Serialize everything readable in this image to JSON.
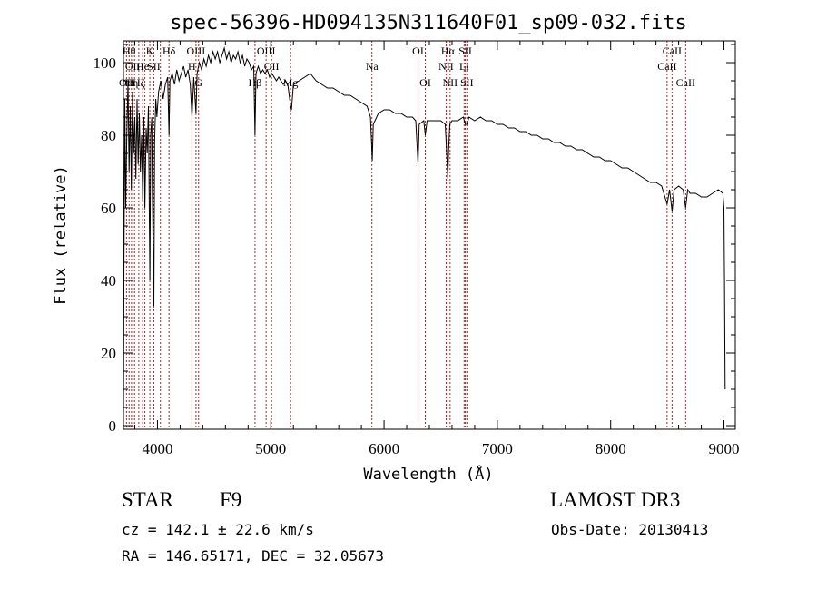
{
  "chart_data": {
    "type": "line",
    "title": "spec-56396-HD094135N311640F01_sp09-032.fits",
    "xlabel": "Wavelength (Å)",
    "ylabel": "Flux (relative)",
    "xlim": [
      3700,
      9100
    ],
    "ylim": [
      -1,
      106
    ],
    "x_ticks": [
      4000,
      5000,
      6000,
      7000,
      8000,
      9000
    ],
    "y_ticks": [
      0,
      20,
      40,
      60,
      80,
      100
    ],
    "grid": false,
    "series": [
      {
        "name": "flux",
        "color": "#000000",
        "points": [
          [
            3700,
            0
          ],
          [
            3705,
            45
          ],
          [
            3712,
            90
          ],
          [
            3720,
            60
          ],
          [
            3730,
            80
          ],
          [
            3740,
            95
          ],
          [
            3750,
            70
          ],
          [
            3760,
            88
          ],
          [
            3770,
            65
          ],
          [
            3780,
            92
          ],
          [
            3790,
            75
          ],
          [
            3800,
            85
          ],
          [
            3810,
            68
          ],
          [
            3820,
            90
          ],
          [
            3830,
            72
          ],
          [
            3840,
            86
          ],
          [
            3850,
            70
          ],
          [
            3860,
            80
          ],
          [
            3870,
            62
          ],
          [
            3880,
            85
          ],
          [
            3889,
            60
          ],
          [
            3900,
            82
          ],
          [
            3910,
            75
          ],
          [
            3920,
            88
          ],
          [
            3933,
            40
          ],
          [
            3940,
            80
          ],
          [
            3950,
            85
          ],
          [
            3955,
            65
          ],
          [
            3968,
            33
          ],
          [
            3975,
            78
          ],
          [
            3985,
            90
          ],
          [
            3995,
            85
          ],
          [
            4010,
            92
          ],
          [
            4030,
            95
          ],
          [
            4050,
            90
          ],
          [
            4070,
            94
          ],
          [
            4090,
            96
          ],
          [
            4102,
            80
          ],
          [
            4110,
            95
          ],
          [
            4130,
            97
          ],
          [
            4150,
            94
          ],
          [
            4170,
            98
          ],
          [
            4190,
            95
          ],
          [
            4210,
            97
          ],
          [
            4230,
            99
          ],
          [
            4250,
            96
          ],
          [
            4270,
            98
          ],
          [
            4290,
            94
          ],
          [
            4305,
            85
          ],
          [
            4320,
            96
          ],
          [
            4340,
            86
          ],
          [
            4350,
            97
          ],
          [
            4370,
            100
          ],
          [
            4390,
            98
          ],
          [
            4410,
            101
          ],
          [
            4430,
            99
          ],
          [
            4450,
            102
          ],
          [
            4470,
            100
          ],
          [
            4490,
            103
          ],
          [
            4510,
            101
          ],
          [
            4530,
            103
          ],
          [
            4550,
            100
          ],
          [
            4570,
            102
          ],
          [
            4590,
            104
          ],
          [
            4610,
            101
          ],
          [
            4630,
            103
          ],
          [
            4650,
            100
          ],
          [
            4670,
            102
          ],
          [
            4690,
            101
          ],
          [
            4710,
            103
          ],
          [
            4730,
            100
          ],
          [
            4750,
            102
          ],
          [
            4770,
            99
          ],
          [
            4790,
            101
          ],
          [
            4810,
            100
          ],
          [
            4830,
            98
          ],
          [
            4850,
            99
          ],
          [
            4861,
            80
          ],
          [
            4870,
            97
          ],
          [
            4890,
            99
          ],
          [
            4910,
            97
          ],
          [
            4930,
            98
          ],
          [
            4950,
            97
          ],
          [
            4970,
            98
          ],
          [
            4990,
            96
          ],
          [
            5010,
            97
          ],
          [
            5030,
            96
          ],
          [
            5050,
            95
          ],
          [
            5070,
            96
          ],
          [
            5090,
            95
          ],
          [
            5110,
            94
          ],
          [
            5130,
            95
          ],
          [
            5150,
            94
          ],
          [
            5167,
            90
          ],
          [
            5175,
            88
          ],
          [
            5183,
            87
          ],
          [
            5200,
            94
          ],
          [
            5250,
            95
          ],
          [
            5300,
            96
          ],
          [
            5350,
            97
          ],
          [
            5400,
            95
          ],
          [
            5450,
            94
          ],
          [
            5500,
            93
          ],
          [
            5550,
            93
          ],
          [
            5600,
            92
          ],
          [
            5650,
            91
          ],
          [
            5700,
            91
          ],
          [
            5750,
            90
          ],
          [
            5800,
            89
          ],
          [
            5850,
            88
          ],
          [
            5880,
            85
          ],
          [
            5890,
            78
          ],
          [
            5896,
            73
          ],
          [
            5905,
            83
          ],
          [
            5950,
            86
          ],
          [
            6000,
            87
          ],
          [
            6050,
            87
          ],
          [
            6100,
            86
          ],
          [
            6150,
            86
          ],
          [
            6200,
            85
          ],
          [
            6250,
            85
          ],
          [
            6280,
            84
          ],
          [
            6300,
            72
          ],
          [
            6310,
            83
          ],
          [
            6350,
            84
          ],
          [
            6364,
            80
          ],
          [
            6380,
            84
          ],
          [
            6400,
            84
          ],
          [
            6450,
            84
          ],
          [
            6500,
            84
          ],
          [
            6540,
            83
          ],
          [
            6555,
            74
          ],
          [
            6563,
            68
          ],
          [
            6570,
            76
          ],
          [
            6580,
            83
          ],
          [
            6600,
            84
          ],
          [
            6650,
            84
          ],
          [
            6700,
            85
          ],
          [
            6717,
            83
          ],
          [
            6731,
            83
          ],
          [
            6750,
            85
          ],
          [
            6800,
            84
          ],
          [
            6850,
            85
          ],
          [
            6900,
            84
          ],
          [
            6950,
            84
          ],
          [
            7000,
            83
          ],
          [
            7050,
            83
          ],
          [
            7100,
            82
          ],
          [
            7150,
            82
          ],
          [
            7200,
            81
          ],
          [
            7250,
            81
          ],
          [
            7300,
            80
          ],
          [
            7350,
            80
          ],
          [
            7400,
            79
          ],
          [
            7450,
            79
          ],
          [
            7500,
            78
          ],
          [
            7550,
            78
          ],
          [
            7600,
            77
          ],
          [
            7650,
            77
          ],
          [
            7700,
            76
          ],
          [
            7750,
            76
          ],
          [
            7800,
            75
          ],
          [
            7850,
            74
          ],
          [
            7900,
            74
          ],
          [
            7950,
            73
          ],
          [
            8000,
            73
          ],
          [
            8050,
            72
          ],
          [
            8100,
            71
          ],
          [
            8150,
            71
          ],
          [
            8200,
            70
          ],
          [
            8250,
            69
          ],
          [
            8300,
            68
          ],
          [
            8350,
            67
          ],
          [
            8400,
            67
          ],
          [
            8450,
            66
          ],
          [
            8498,
            61
          ],
          [
            8520,
            65
          ],
          [
            8542,
            59
          ],
          [
            8560,
            65
          ],
          [
            8600,
            66
          ],
          [
            8640,
            65
          ],
          [
            8662,
            60
          ],
          [
            8680,
            65
          ],
          [
            8700,
            64
          ],
          [
            8750,
            64
          ],
          [
            8800,
            63
          ],
          [
            8850,
            63
          ],
          [
            8900,
            64
          ],
          [
            8950,
            65
          ],
          [
            8990,
            64
          ],
          [
            9000,
            60
          ],
          [
            9005,
            40
          ],
          [
            9010,
            10
          ]
        ]
      }
    ],
    "reference_lines": [
      {
        "wavelength": 3727,
        "label": "OII",
        "row": 2
      },
      {
        "wavelength": 3750,
        "label": "Hθ",
        "row": 0
      },
      {
        "wavelength": 3771,
        "label": "Hη",
        "row": 2
      },
      {
        "wavelength": 3798,
        "label": "OIII",
        "row": 1
      },
      {
        "wavelength": 3835,
        "label": "Hζ",
        "row": 2
      },
      {
        "wavelength": 3869,
        "label": "He",
        "row": 1
      },
      {
        "wavelength": 3889,
        "label": "",
        "row": 2
      },
      {
        "wavelength": 3933,
        "label": "K",
        "row": 0
      },
      {
        "wavelength": 3968,
        "label": "SII",
        "row": 1
      },
      {
        "wavelength": 4026,
        "label": "",
        "row": 2
      },
      {
        "wavelength": 4102,
        "label": "Hδ",
        "row": 0
      },
      {
        "wavelength": 4304,
        "label": "H",
        "row": 1
      },
      {
        "wavelength": 4340,
        "label": "OIII",
        "row": 0
      },
      {
        "wavelength": 4363,
        "label": "G",
        "row": 2
      },
      {
        "wavelength": 4861,
        "label": "Hβ",
        "row": 2
      },
      {
        "wavelength": 4959,
        "label": "OIII",
        "row": 0
      },
      {
        "wavelength": 5007,
        "label": "OII",
        "row": 1
      },
      {
        "wavelength": 5175,
        "label": "Mg",
        "row": 2
      },
      {
        "wavelength": 5893,
        "label": "Na",
        "row": 1
      },
      {
        "wavelength": 6300,
        "label": "OI",
        "row": 0
      },
      {
        "wavelength": 6364,
        "label": "OI",
        "row": 2
      },
      {
        "wavelength": 6548,
        "label": "NII",
        "row": 1
      },
      {
        "wavelength": 6563,
        "label": "Hα",
        "row": 0
      },
      {
        "wavelength": 6583,
        "label": "NII",
        "row": 2
      },
      {
        "wavelength": 6707,
        "label": "Li",
        "row": 1
      },
      {
        "wavelength": 6717,
        "label": "SII",
        "row": 0
      },
      {
        "wavelength": 6731,
        "label": "SII",
        "row": 2
      },
      {
        "wavelength": 8498,
        "label": "CaII",
        "row": 1
      },
      {
        "wavelength": 8542,
        "label": "CaII",
        "row": 0
      },
      {
        "wavelength": 8662,
        "label": "CaII",
        "row": 2
      }
    ]
  },
  "info": {
    "class": "STAR",
    "subclass": "F9",
    "survey": "LAMOST DR3",
    "redshift": "cz = 142.1 ± 22.6 km/s",
    "obs_date": "Obs-Date: 20130413",
    "coords": "RA = 146.65171, DEC =  32.05673"
  },
  "colors": {
    "spectrum": "#000000",
    "reference_line": "#b22222",
    "axis": "#000000"
  }
}
